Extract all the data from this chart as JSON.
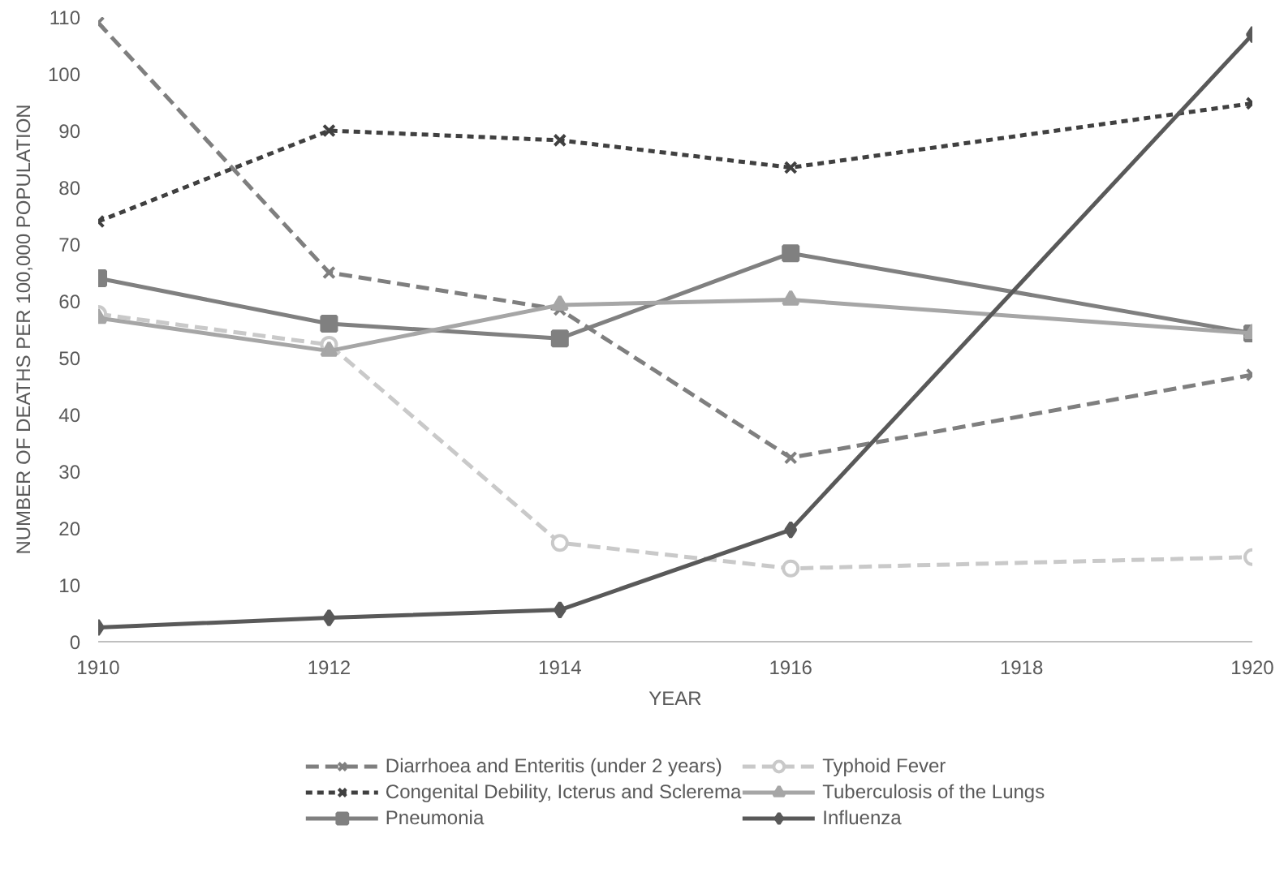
{
  "chart_data": {
    "type": "line",
    "xlabel": "YEAR",
    "ylabel": "NUMBER OF DEATHS PER 100,000 POPULATION",
    "x": [
      1910,
      1912,
      1914,
      1916,
      1920
    ],
    "xlim": [
      1910,
      1920
    ],
    "xticks": [
      1910,
      1912,
      1914,
      1916,
      1918,
      1920
    ],
    "ylim": [
      0,
      110
    ],
    "yticks": [
      0,
      10,
      20,
      30,
      40,
      50,
      60,
      70,
      80,
      90,
      100,
      110
    ],
    "grid": false,
    "legend": "bottom",
    "series": [
      {
        "name": "Diarrhoea and Enteritis (under 2 years)",
        "color": "#7f7f7f",
        "marker": "cross",
        "line_style": "dashed",
        "values": [
          109,
          65,
          58.5,
          32.4,
          47
        ]
      },
      {
        "name": "Congenital Debility, Icterus and Sclerema",
        "color": "#404040",
        "marker": "cross",
        "line_style": "dotted",
        "values": [
          74,
          90,
          88.3,
          83.5,
          94.8
        ]
      },
      {
        "name": "Pneumonia",
        "color": "#808080",
        "marker": "square",
        "line_style": "solid",
        "values": [
          64,
          56,
          53.4,
          68.4,
          54.3
        ]
      },
      {
        "name": "Typhoid Fever",
        "color": "#c9c9c9",
        "marker": "circle",
        "line_style": "dashed",
        "values": [
          57.7,
          52.3,
          17.4,
          12.9,
          14.9
        ]
      },
      {
        "name": "Tuberculosis of the Lungs",
        "color": "#a6a6a6",
        "marker": "triangle",
        "line_style": "solid",
        "values": [
          57,
          51.2,
          59.3,
          60.2,
          54.3
        ]
      },
      {
        "name": "Influenza",
        "color": "#595959",
        "marker": "diamond",
        "line_style": "solid",
        "values": [
          2.5,
          4.2,
          5.6,
          19.7,
          106.9
        ]
      }
    ]
  }
}
